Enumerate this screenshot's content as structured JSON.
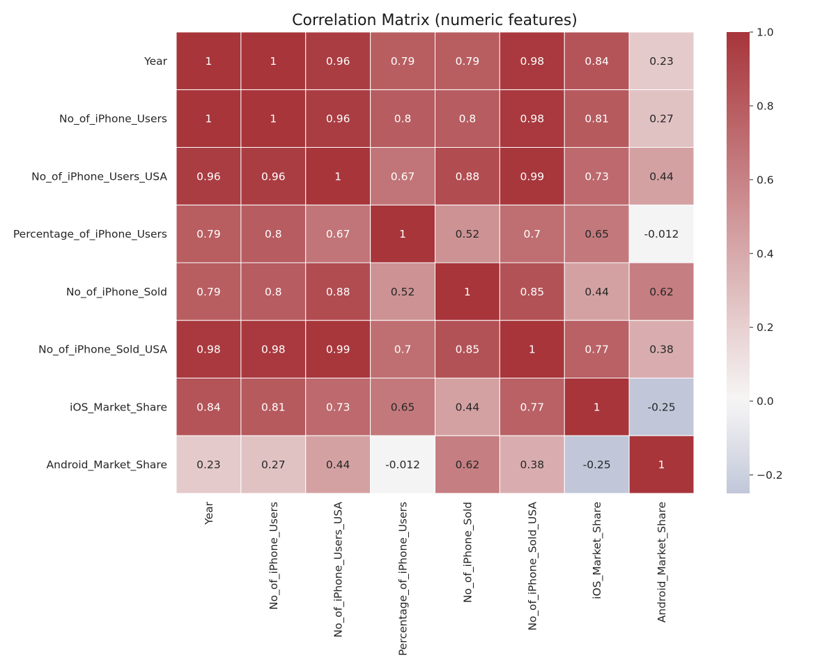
{
  "chart_data": {
    "type": "heatmap",
    "title": "Correlation Matrix (numeric features)",
    "xlabel": "",
    "ylabel": "",
    "row_labels": [
      "Year",
      "No_of_iPhone_Users",
      "No_of_iPhone_Users_USA",
      "Percentage_of_iPhone_Users",
      "No_of_iPhone_Sold",
      "No_of_iPhone_Sold_USA",
      "iOS_Market_Share",
      "Android_Market_Share"
    ],
    "col_labels": [
      "Year",
      "No_of_iPhone_Users",
      "No_of_iPhone_Users_USA",
      "Percentage_of_iPhone_Users",
      "No_of_iPhone_Sold",
      "No_of_iPhone_Sold_USA",
      "iOS_Market_Share",
      "Android_Market_Share"
    ],
    "values": [
      [
        1,
        1,
        0.96,
        0.79,
        0.79,
        0.98,
        0.84,
        0.23
      ],
      [
        1,
        1,
        0.96,
        0.8,
        0.8,
        0.98,
        0.81,
        0.27
      ],
      [
        0.96,
        0.96,
        1,
        0.67,
        0.88,
        0.99,
        0.73,
        0.44
      ],
      [
        0.79,
        0.8,
        0.67,
        1,
        0.52,
        0.7,
        0.65,
        -0.012
      ],
      [
        0.79,
        0.8,
        0.88,
        0.52,
        1,
        0.85,
        0.44,
        0.62
      ],
      [
        0.98,
        0.98,
        0.99,
        0.7,
        0.85,
        1,
        0.77,
        0.38
      ],
      [
        0.84,
        0.81,
        0.73,
        0.65,
        0.44,
        0.77,
        1,
        -0.25
      ],
      [
        0.23,
        0.27,
        0.44,
        -0.012,
        0.62,
        0.38,
        -0.25,
        1
      ]
    ],
    "colorbar": {
      "range": [
        -0.25,
        1.0
      ],
      "ticks": [
        -0.2,
        0.0,
        0.2,
        0.4,
        0.6,
        0.8,
        1.0
      ],
      "tick_labels": [
        "−0.2",
        "0.0",
        "0.2",
        "0.4",
        "0.6",
        "0.8",
        "1.0"
      ]
    },
    "colormap": {
      "high": "#a7353a",
      "mid": "#f7f6f6",
      "low": "#c1c7d9",
      "center": 0
    },
    "annotate": true,
    "grid_lines": "white"
  }
}
